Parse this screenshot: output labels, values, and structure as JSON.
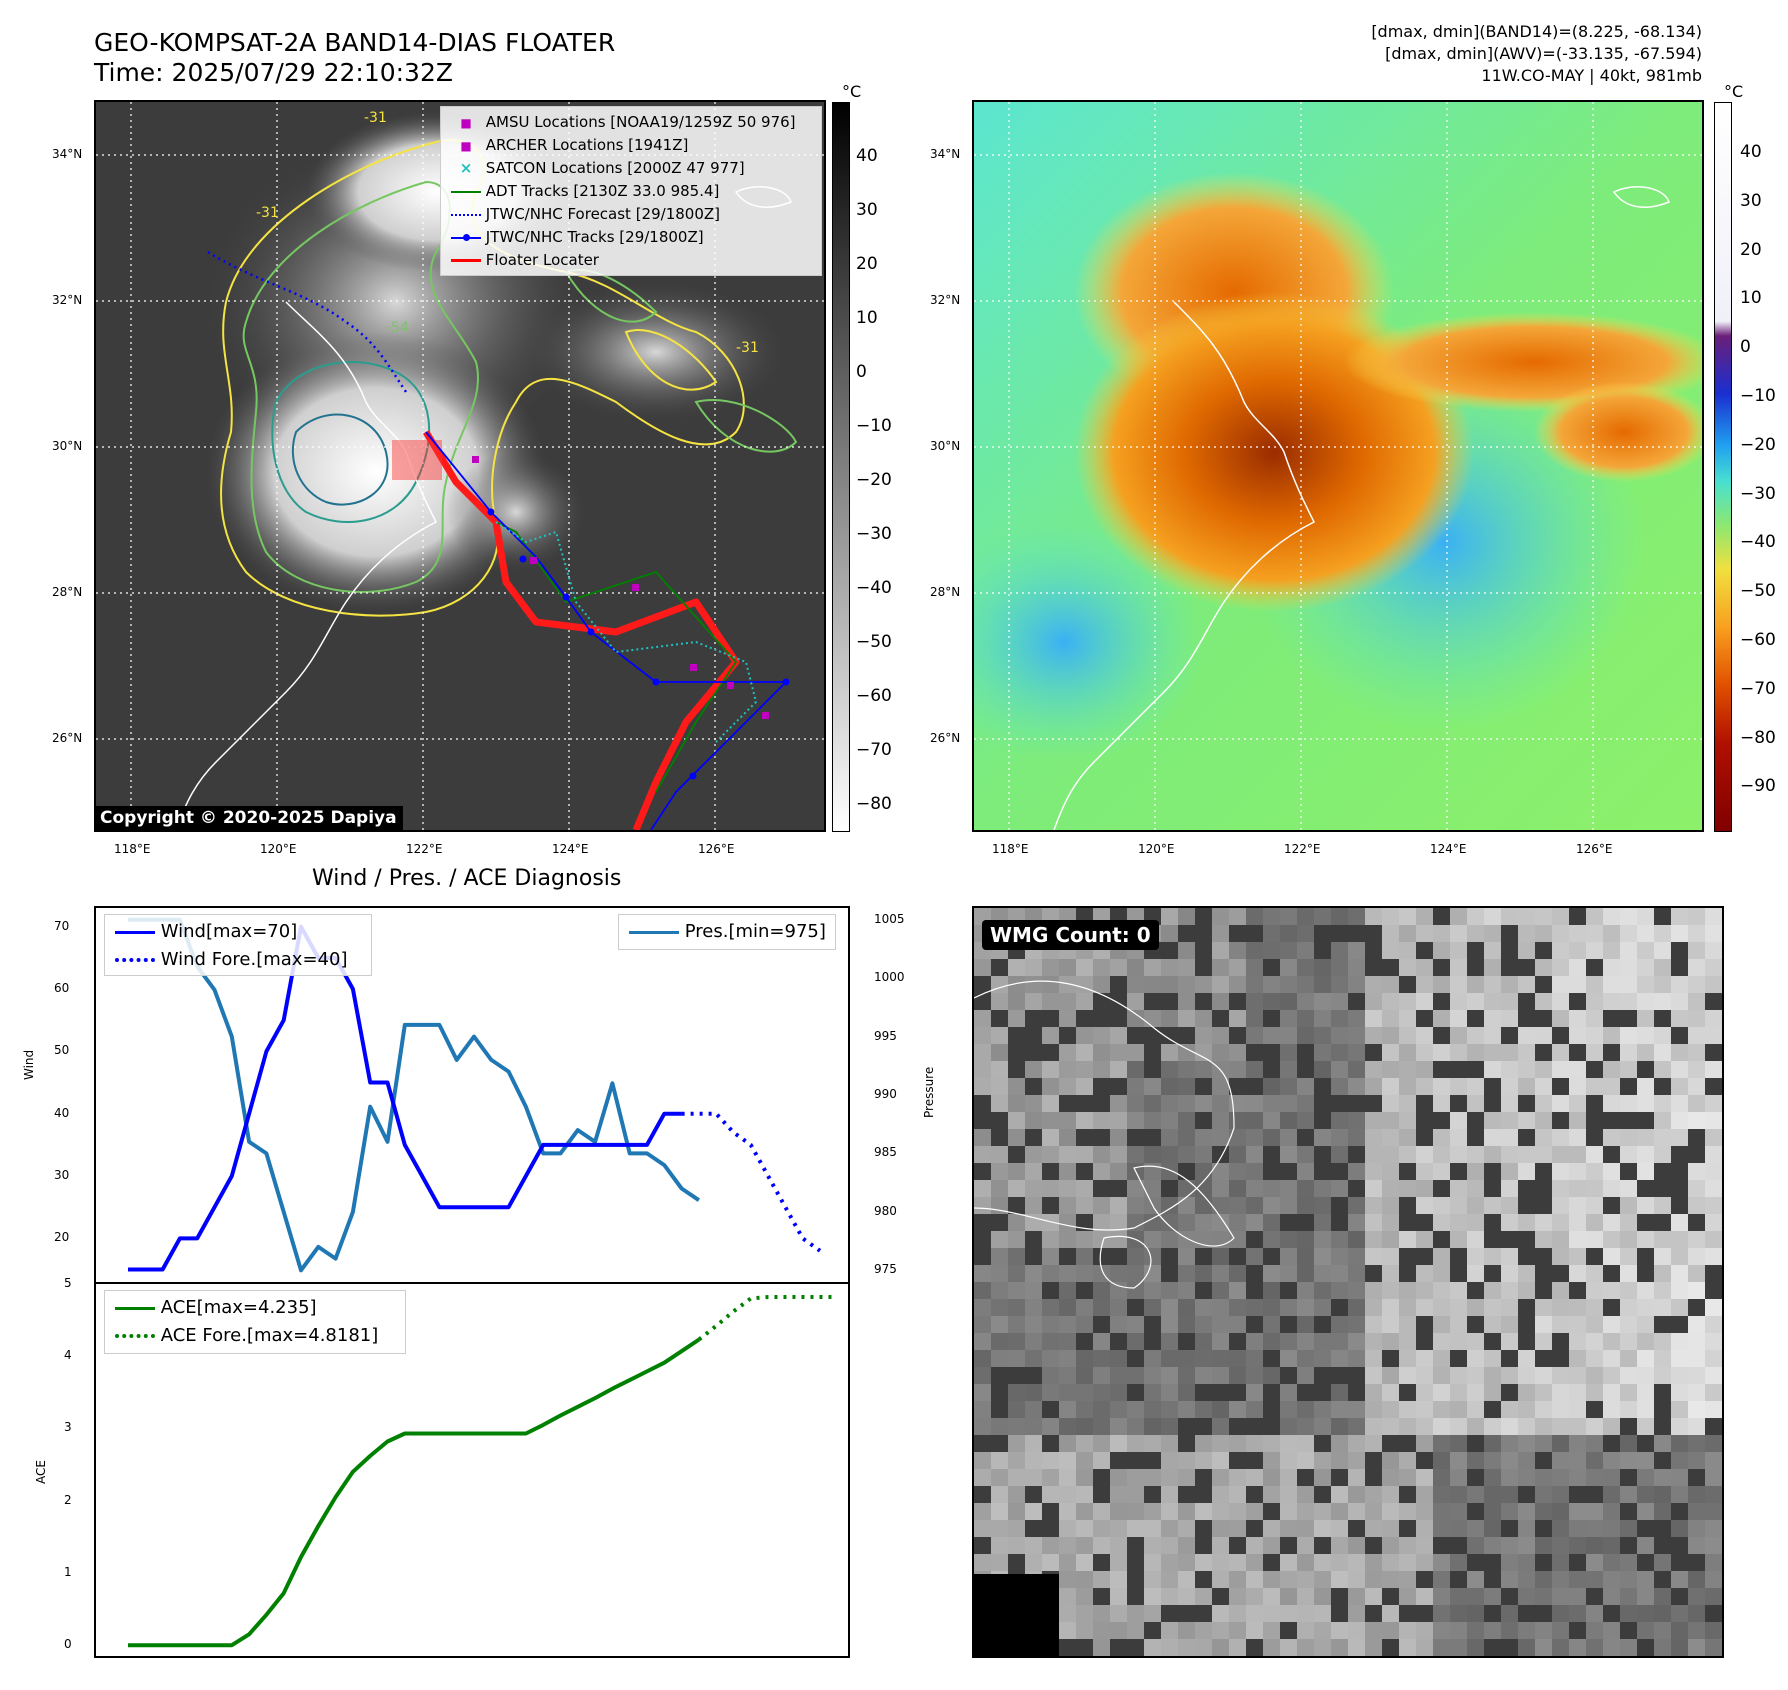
{
  "header": {
    "title_line1": "GEO-KOMPSAT-2A BAND14-DIAS FLOATER",
    "title_line2": "Time: 2025/07/29 22:10:32Z",
    "right_line1": "[dmax, dmin](BAND14)=(8.225, -68.134)",
    "right_line2": "[dmax, dmin](AWV)=(-33.135, -67.594)",
    "right_line3": "11W.CO-MAY | 40kt, 981mb"
  },
  "map": {
    "lat_labels": [
      "34°N",
      "32°N",
      "30°N",
      "28°N",
      "26°N"
    ],
    "lon_labels": [
      "118°E",
      "120°E",
      "122°E",
      "124°E",
      "126°E"
    ],
    "contour_labels": [
      "-31",
      "-31",
      "-54",
      "-31"
    ],
    "copyright": "Copyright © 2020-2025 Dapiya"
  },
  "legend_ir": [
    {
      "label": "AMSU Locations [NOAA19/1259Z 50 976]",
      "marker": "square",
      "color": "#c000c0"
    },
    {
      "label": "ARCHER Locations [1941Z]",
      "marker": "square",
      "color": "#c000c0"
    },
    {
      "label": "SATCON Locations [2000Z 47 977]",
      "marker": "x",
      "color": "#20c0c0"
    },
    {
      "label": "ADT Tracks [2130Z 33.0 985.4]",
      "marker": "line",
      "color": "#008000"
    },
    {
      "label": "JTWC/NHC Forecast [29/1800Z]",
      "marker": "dotted",
      "color": "#0000ff"
    },
    {
      "label": "JTWC/NHC Tracks [29/1800Z]",
      "marker": "line-dot",
      "color": "#0000ff"
    },
    {
      "label": "Floater Locater",
      "marker": "line",
      "color": "#ff0000"
    }
  ],
  "colorbar_ir": {
    "unit": "°C",
    "ticks": [
      "40",
      "30",
      "20",
      "10",
      "0",
      "−10",
      "−20",
      "−30",
      "−40",
      "−50",
      "−60",
      "−70",
      "−80"
    ]
  },
  "colorbar_wv": {
    "unit": "°C",
    "ticks": [
      "40",
      "30",
      "20",
      "10",
      "0",
      "−10",
      "−20",
      "−30",
      "−40",
      "−50",
      "−60",
      "−70",
      "−80",
      "−90"
    ]
  },
  "diag": {
    "title": "Wind / Pres. / ACE Diagnosis",
    "wind_axis_label": "Wind",
    "pres_axis_label": "Pressure",
    "ace_axis_label": "ACE",
    "wind_ticks": [
      "70",
      "60",
      "50",
      "40",
      "30",
      "20"
    ],
    "pres_ticks": [
      "1005",
      "1000",
      "995",
      "990",
      "985",
      "980",
      "975"
    ],
    "ace_ticks": [
      "5",
      "4",
      "3",
      "2",
      "1",
      "0"
    ],
    "legend_wind": "Wind[max=70]",
    "legend_wind_fore": "Wind Fore.[max=40]",
    "legend_pres": "Pres.[min=975]",
    "legend_ace": "ACE[max=4.235]",
    "legend_ace_fore": "ACE Fore.[max=4.8181]"
  },
  "chart_data": [
    {
      "type": "line",
      "title": "Wind / Pres. / ACE Diagnosis",
      "ylabel": "Wind",
      "ylim": [
        13,
        73
      ],
      "series": [
        {
          "name": "Wind[max=70]",
          "color": "#0000ff",
          "style": "solid",
          "values": [
            15,
            15,
            15,
            20,
            20,
            25,
            30,
            40,
            50,
            55,
            70,
            65,
            65,
            60,
            45,
            45,
            35,
            30,
            25,
            25,
            25,
            25,
            25,
            30,
            35,
            35,
            35,
            35,
            35,
            35,
            35,
            40,
            40
          ]
        },
        {
          "name": "Wind Fore.[max=40]",
          "color": "#0000ff",
          "style": "dotted",
          "x_offset": 32,
          "values": [
            40,
            40,
            40,
            37,
            35,
            30,
            25,
            20,
            18
          ]
        }
      ]
    },
    {
      "type": "line",
      "ylabel": "Pressure",
      "ylim": [
        974,
        1006
      ],
      "series": [
        {
          "name": "Pres.[min=975]",
          "color": "#1f77b4",
          "style": "solid",
          "values": [
            1005,
            1005,
            1005,
            1005,
            1001,
            999,
            995,
            986,
            985,
            980,
            975,
            977,
            976,
            980,
            989,
            986,
            996,
            996,
            996,
            993,
            995,
            993,
            992,
            989,
            985,
            985,
            987,
            986,
            991,
            985,
            985,
            984,
            982,
            981
          ]
        }
      ]
    },
    {
      "type": "line",
      "ylabel": "ACE",
      "ylim": [
        -0.15,
        5
      ],
      "series": [
        {
          "name": "ACE[max=4.235]",
          "color": "#008000",
          "style": "solid",
          "values": [
            0,
            0,
            0,
            0,
            0,
            0,
            0,
            0.15,
            0.42,
            0.72,
            1.22,
            1.65,
            2.05,
            2.4,
            2.62,
            2.82,
            2.93,
            2.93,
            2.93,
            2.93,
            2.93,
            2.93,
            2.93,
            2.93,
            3.05,
            3.18,
            3.3,
            3.42,
            3.55,
            3.67,
            3.79,
            3.91,
            4.07,
            4.23
          ]
        },
        {
          "name": "ACE Fore.[max=4.8181]",
          "color": "#008000",
          "style": "dotted",
          "x_offset": 33,
          "values": [
            4.23,
            4.42,
            4.62,
            4.8,
            4.82,
            4.82,
            4.82,
            4.82,
            4.82
          ]
        }
      ]
    }
  ],
  "wmg": {
    "label": "WMG Count: 0"
  }
}
